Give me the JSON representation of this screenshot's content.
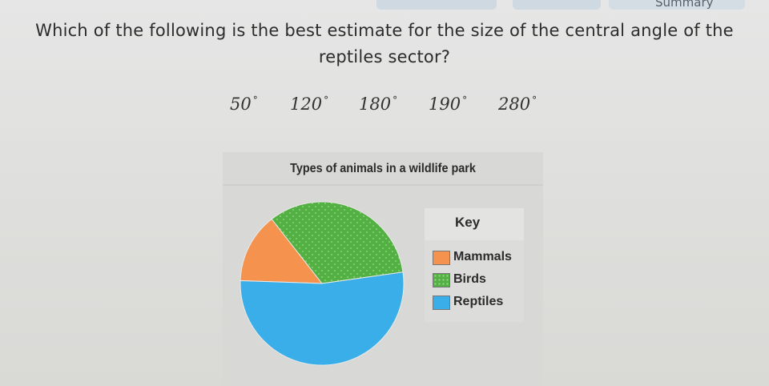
{
  "header": {
    "summary_label": "Summary"
  },
  "question": {
    "text": "Which of the following is the best estimate for the size of the central angle of the reptiles sector?"
  },
  "options": [
    {
      "value": "50",
      "unit": "°"
    },
    {
      "value": "120",
      "unit": "°"
    },
    {
      "value": "180",
      "unit": "°"
    },
    {
      "value": "190",
      "unit": "°"
    },
    {
      "value": "280",
      "unit": "°"
    }
  ],
  "chart_data": {
    "type": "pie",
    "title": "Types of animals in a wildlife park",
    "key_title": "Key",
    "slices": [
      {
        "label": "Mammals",
        "value": 50,
        "color": "#f4924e"
      },
      {
        "label": "Birds",
        "value": 120,
        "color": "#53b042"
      },
      {
        "label": "Reptiles",
        "value": 190,
        "color": "#3aaee8"
      }
    ],
    "legend": "right",
    "bird_pattern": "dotted"
  }
}
